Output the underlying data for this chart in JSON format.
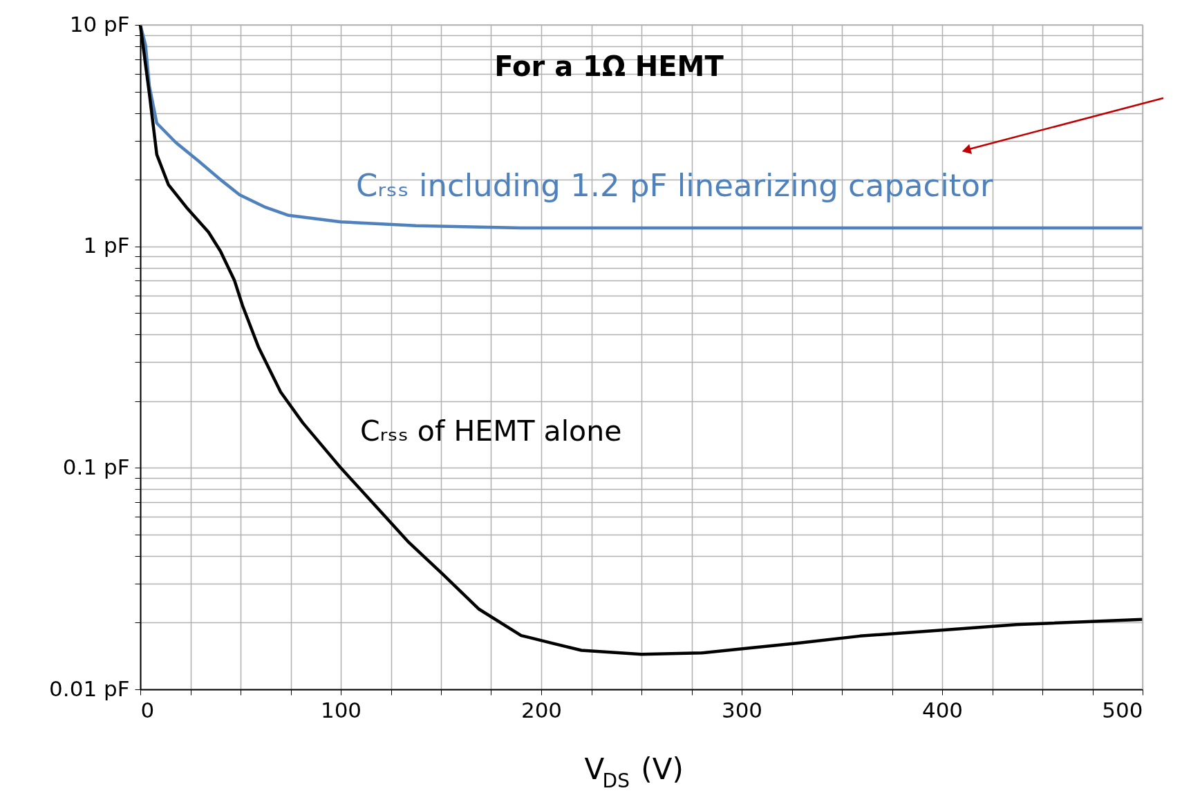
{
  "chart_data": {
    "type": "line",
    "title": "For a 1Ω HEMT",
    "xlabel": "V$_{DS}$ (V)",
    "xlim": [
      0,
      500
    ],
    "ylim": [
      0.01,
      10
    ],
    "log": "y",
    "grid": true,
    "line_style": "solid",
    "marker": "none",
    "xticks": [
      0,
      {
        "value": 25,
        "label": null
      },
      {
        "value": 50,
        "label": null
      },
      {
        "value": 75,
        "label": null
      },
      100,
      {
        "value": 125,
        "label": null
      },
      {
        "value": 150,
        "label": null
      },
      {
        "value": 175,
        "label": null
      },
      200,
      {
        "value": 225,
        "label": null
      },
      {
        "value": 250,
        "label": null
      },
      {
        "value": 275,
        "label": null
      },
      300,
      {
        "value": 325,
        "label": null
      },
      {
        "value": 350,
        "label": null
      },
      {
        "value": 375,
        "label": null
      },
      400,
      {
        "value": 425,
        "label": null
      },
      {
        "value": 450,
        "label": null
      },
      {
        "value": 475,
        "label": null
      },
      500
    ],
    "yticks": [
      {
        "value": 0.01,
        "label": "0.01 pF"
      },
      {
        "value": 0.02,
        "label": null
      },
      {
        "value": 0.03,
        "label": null
      },
      {
        "value": 0.04,
        "label": null
      },
      {
        "value": 0.05,
        "label": null
      },
      {
        "value": 0.06,
        "label": null
      },
      {
        "value": 0.07,
        "label": null
      },
      {
        "value": 0.08,
        "label": null
      },
      {
        "value": 0.09,
        "label": null
      },
      {
        "value": 0.1,
        "label": "0.1 pF"
      },
      {
        "value": 0.2,
        "label": null
      },
      {
        "value": 0.3,
        "label": null
      },
      {
        "value": 0.4,
        "label": null
      },
      {
        "value": 0.5,
        "label": null
      },
      {
        "value": 0.6,
        "label": null
      },
      {
        "value": 0.7,
        "label": null
      },
      {
        "value": 0.8,
        "label": null
      },
      {
        "value": 0.9,
        "label": null
      },
      {
        "value": 1,
        "label": "1 pF"
      },
      {
        "value": 2,
        "label": null
      },
      {
        "value": 3,
        "label": null
      },
      {
        "value": 4,
        "label": null
      },
      {
        "value": 5,
        "label": null
      },
      {
        "value": 6,
        "label": null
      },
      {
        "value": 7,
        "label": null
      },
      {
        "value": 8,
        "label": null
      },
      {
        "value": 9,
        "label": null
      },
      {
        "value": 10,
        "label": "10 pF"
      }
    ],
    "series": [
      {
        "name": "Cᵣₛₛ including 1.2 pF linearizing capacitor",
        "color": "#4f81bd",
        "x": [
          0,
          2.6,
          4.5,
          8.2,
          17.6,
          29,
          40,
          49.5,
          62.5,
          74,
          100,
          137.5,
          190,
          300,
          400,
          500
        ],
        "values": [
          10,
          8.1,
          5.3,
          3.6,
          2.95,
          2.43,
          2.0,
          1.71,
          1.5,
          1.38,
          1.29,
          1.24,
          1.21,
          1.21,
          1.21,
          1.21
        ]
      },
      {
        "name": "Cᵣₛₛ of HEMT alone",
        "color": "#000000",
        "x": [
          0,
          4.5,
          8.2,
          14,
          23,
          34,
          40,
          47,
          51,
          59,
          70,
          81,
          100,
          115,
          134,
          151,
          169,
          190,
          205,
          220,
          250,
          280,
          302,
          329,
          359,
          400,
          437,
          500
        ],
        "values": [
          10,
          4.9,
          2.6,
          1.9,
          1.5,
          1.16,
          0.95,
          0.7,
          0.54,
          0.35,
          0.22,
          0.16,
          0.1,
          0.071,
          0.046,
          0.033,
          0.023,
          0.0175,
          0.0162,
          0.015,
          0.0144,
          0.0146,
          0.0153,
          0.0162,
          0.0174,
          0.0185,
          0.0196,
          0.0207
        ]
      }
    ]
  }
}
